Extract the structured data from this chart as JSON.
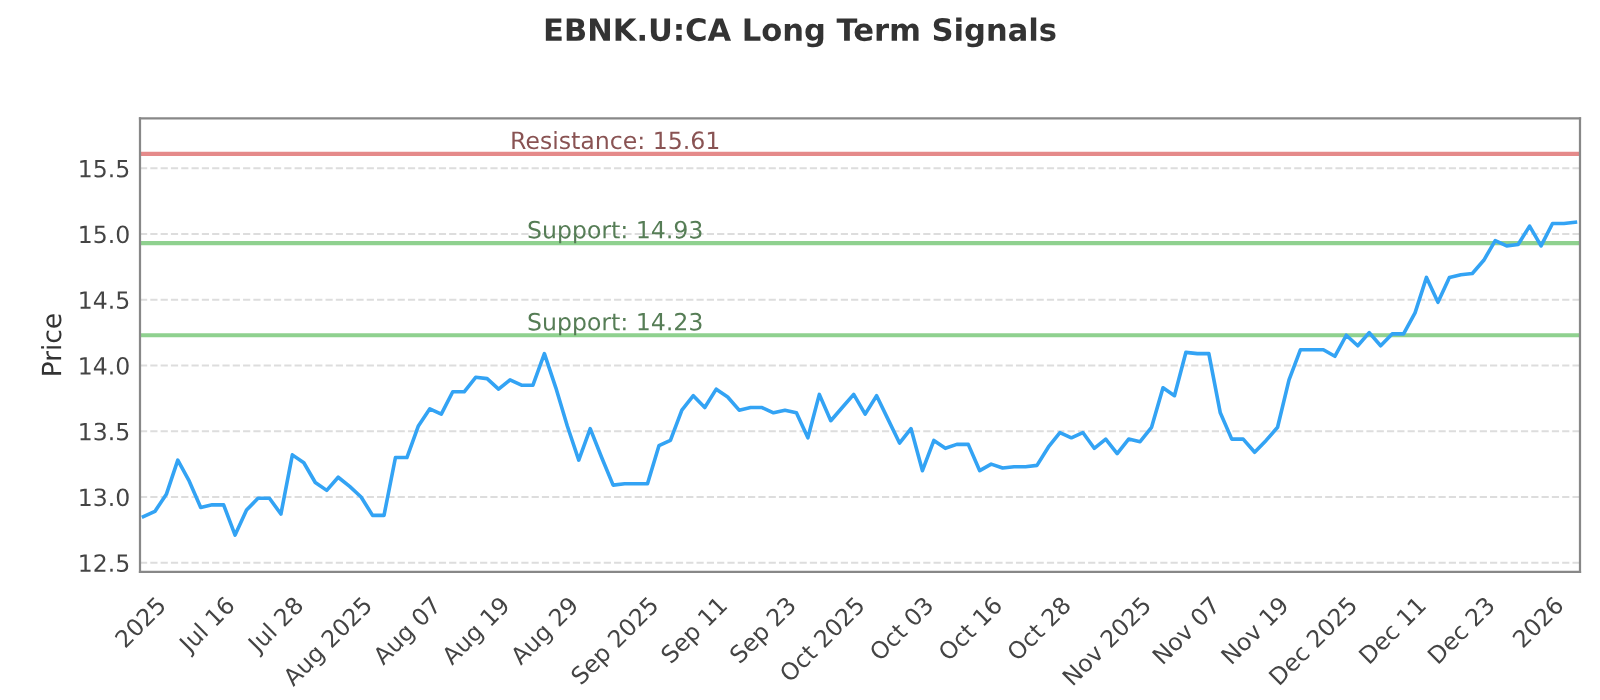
{
  "chart_data": {
    "type": "line",
    "title": "EBNK.U:CA Long Term Signals",
    "ylabel": "Price",
    "categories": [
      null,
      "2025",
      null,
      null,
      null,
      null,
      null,
      "Jul 16",
      null,
      null,
      null,
      null,
      null,
      "Jul 28",
      null,
      null,
      null,
      null,
      null,
      "Aug 2025",
      null,
      null,
      null,
      null,
      null,
      "Aug 07",
      null,
      null,
      null,
      null,
      null,
      "Aug 19",
      null,
      null,
      null,
      null,
      null,
      "Aug 29",
      null,
      null,
      null,
      null,
      null,
      null,
      "Sep 2025",
      null,
      null,
      null,
      null,
      null,
      "Sep 11",
      null,
      null,
      null,
      null,
      null,
      "Sep 23",
      null,
      null,
      null,
      null,
      null,
      "Oct 2025",
      null,
      null,
      null,
      null,
      null,
      "Oct 03",
      null,
      null,
      null,
      null,
      null,
      "Oct 16",
      null,
      null,
      null,
      null,
      null,
      "Oct 28",
      null,
      null,
      null,
      null,
      null,
      null,
      "Nov 2025",
      null,
      null,
      null,
      null,
      null,
      "Nov 07",
      null,
      null,
      null,
      null,
      null,
      "Nov 19",
      null,
      null,
      null,
      null,
      null,
      "Dec 2025",
      null,
      null,
      null,
      null,
      null,
      "Dec 11",
      null,
      null,
      null,
      null,
      null,
      "Dec 23",
      null,
      null,
      null,
      null,
      null,
      "2026",
      null,
      null
    ],
    "series": [
      {
        "color": "#33a3f4",
        "values": [
          12.85,
          12.89,
          13.02,
          13.28,
          13.12,
          12.92,
          12.94,
          12.94,
          12.71,
          12.9,
          12.99,
          12.99,
          12.87,
          13.32,
          13.26,
          13.11,
          13.05,
          13.15,
          13.08,
          13.0,
          12.86,
          12.86,
          13.3,
          13.3,
          13.54,
          13.67,
          13.63,
          13.8,
          13.8,
          13.91,
          13.9,
          13.82,
          13.89,
          13.85,
          13.85,
          14.09,
          13.83,
          13.54,
          13.28,
          13.52,
          13.3,
          13.09,
          13.1,
          13.1,
          13.1,
          13.39,
          13.43,
          13.66,
          13.77,
          13.68,
          13.82,
          13.76,
          13.66,
          13.68,
          13.68,
          13.64,
          13.66,
          13.64,
          13.45,
          13.78,
          13.58,
          13.68,
          13.78,
          13.63,
          13.77,
          13.59,
          13.41,
          13.52,
          13.2,
          13.43,
          13.37,
          13.4,
          13.4,
          13.2,
          13.25,
          13.22,
          13.23,
          13.23,
          13.24,
          13.38,
          13.49,
          13.45,
          13.49,
          13.37,
          13.44,
          13.33,
          13.44,
          13.42,
          13.53,
          13.83,
          13.77,
          14.1,
          14.09,
          14.09,
          13.64,
          13.44,
          13.44,
          13.34,
          13.43,
          13.53,
          13.89,
          14.12,
          14.12,
          14.12,
          14.07,
          14.23,
          14.15,
          14.25,
          14.15,
          14.24,
          14.24,
          14.4,
          14.67,
          14.48,
          14.67,
          14.69,
          14.7,
          14.8,
          14.95,
          14.91,
          14.92,
          15.06,
          14.91,
          15.08,
          15.08,
          15.09
        ]
      }
    ],
    "ylim": [
      12.43,
      15.88
    ],
    "yticks": [
      12.5,
      {
        "value": 13,
        "label": "13.0"
      },
      13.5,
      {
        "value": 14,
        "label": "14.0"
      },
      14.5,
      {
        "value": 15,
        "label": "15.0"
      },
      15.5
    ],
    "grid": "y",
    "ref_lines": [
      {
        "axis": "y",
        "value": 15.61,
        "label": "Resistance: 15.61",
        "color": "#e58a8a"
      },
      {
        "axis": "y",
        "value": 14.93,
        "label": "Support: 14.93",
        "color": "#8fd18f"
      },
      {
        "axis": "y",
        "value": 14.23,
        "label": "Support: 14.23",
        "color": "#8fd18f"
      }
    ]
  }
}
